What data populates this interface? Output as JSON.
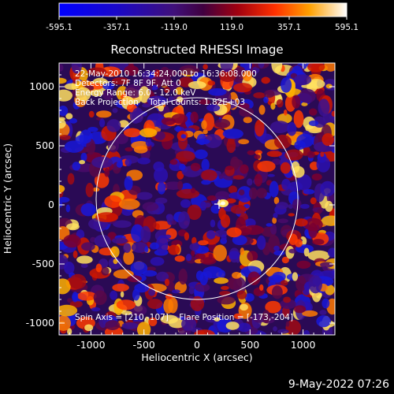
{
  "colorbar": {
    "ticks": [
      "-595.1",
      "-357.1",
      "-119.0",
      "119.0",
      "357.1",
      "595.1"
    ]
  },
  "chart_data": {
    "type": "heatmap",
    "title": "Reconstructed RHESSI Image",
    "xlabel": "Heliocentric X (arcsec)",
    "ylabel": "Heliocentric Y (arcsec)",
    "xlim": [
      -1300,
      1300
    ],
    "ylim": [
      -1100,
      1200
    ],
    "xticks": [
      "-1000",
      "-500",
      "0",
      "500",
      "1000"
    ],
    "yticks": [
      "1000",
      "500",
      "0",
      "-500",
      "-1000"
    ],
    "solar_limb_radius_arcsec": 950,
    "cursor_position": [
      220,
      -80
    ],
    "colormap": "rhessi"
  },
  "annotations": {
    "line1": "22-May-2010 16:34:24.000 to 16:36:08.000",
    "line2": "Detectors: 7F 8F 9F, Att 0",
    "line3": "Energy Range: 6.0 - 12.0 keV",
    "line4": "Back Projection    Total counts: 1.82E+03",
    "bottom": "Spin Axis = [210,-107]    Flare Position = [-173,-204]"
  },
  "footer": {
    "timestamp": "9-May-2022 07:26"
  }
}
